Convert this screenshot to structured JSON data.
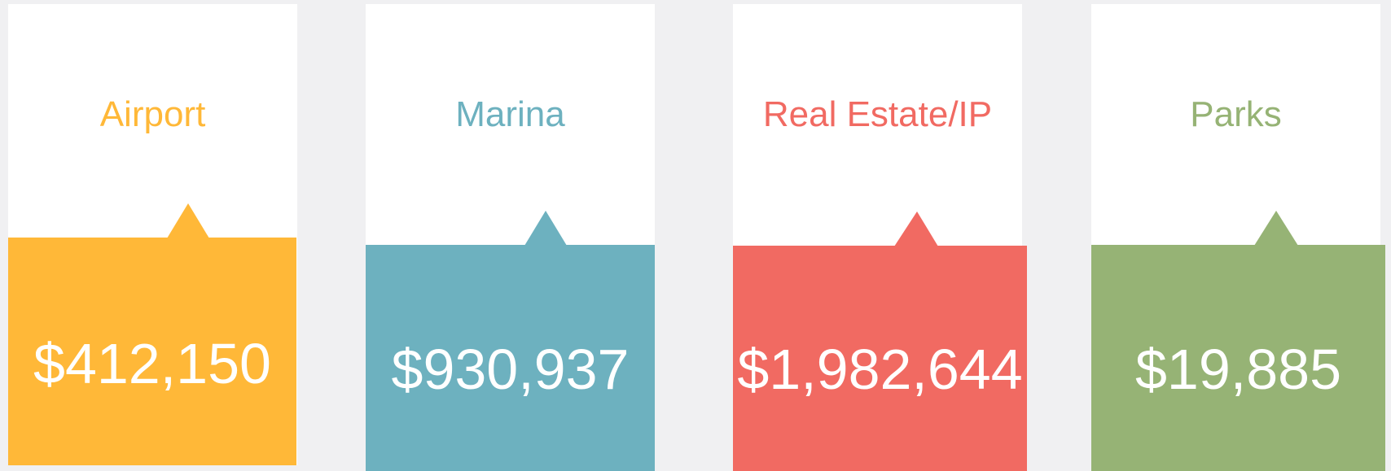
{
  "cards": [
    {
      "label": "Airport",
      "value": "$412,150"
    },
    {
      "label": "Marina",
      "value": "$930,937"
    },
    {
      "label": "Real Estate/IP",
      "value": "$1,982,644"
    },
    {
      "label": "Parks",
      "value": "$19,885"
    }
  ]
}
